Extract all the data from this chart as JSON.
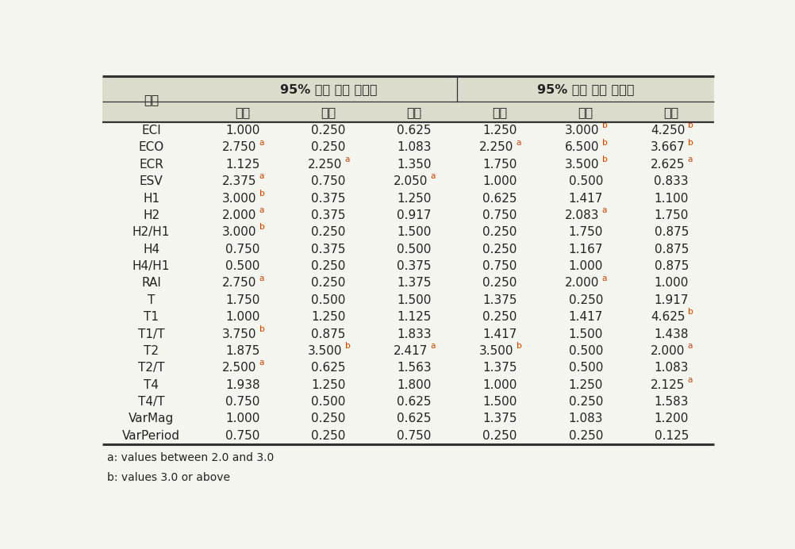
{
  "header_row1_col0": "지표",
  "header_row1_span1": "95% 구간 이상 이상치",
  "header_row1_span2": "95% 구간 이하 이상치",
  "header_row2": [
    "남성",
    "여성",
    "전체",
    "남성",
    "여성",
    "전체"
  ],
  "rows": [
    [
      "ECI",
      "1.000",
      "0.250",
      "0.625",
      "1.250",
      "3.000 b",
      "4.250 b"
    ],
    [
      "ECO",
      "2.750 a",
      "0.250",
      "1.083",
      "2.250 a",
      "6.500 b",
      "3.667 b"
    ],
    [
      "ECR",
      "1.125",
      "2.250 a",
      "1.350",
      "1.750",
      "3.500 b",
      "2.625 a"
    ],
    [
      "ESV",
      "2.375 a",
      "0.750",
      "2.050 a",
      "1.000",
      "0.500",
      "0.833"
    ],
    [
      "H1",
      "3.000 b",
      "0.375",
      "1.250",
      "0.625",
      "1.417",
      "1.100"
    ],
    [
      "H2",
      "2.000 a",
      "0.375",
      "0.917",
      "0.750",
      "2.083 a",
      "1.750"
    ],
    [
      "H2/H1",
      "3.000 b",
      "0.250",
      "1.500",
      "0.250",
      "1.750",
      "0.875"
    ],
    [
      "H4",
      "0.750",
      "0.375",
      "0.500",
      "0.250",
      "1.167",
      "0.875"
    ],
    [
      "H4/H1",
      "0.500",
      "0.250",
      "0.375",
      "0.750",
      "1.000",
      "0.875"
    ],
    [
      "RAI",
      "2.750 a",
      "0.250",
      "1.375",
      "0.250",
      "2.000 a",
      "1.000"
    ],
    [
      "T",
      "1.750",
      "0.500",
      "1.500",
      "1.375",
      "0.250",
      "1.917"
    ],
    [
      "T1",
      "1.000",
      "1.250",
      "1.125",
      "0.250",
      "1.417",
      "4.625 b"
    ],
    [
      "T1/T",
      "3.750 b",
      "0.875",
      "1.833",
      "1.417",
      "1.500",
      "1.438"
    ],
    [
      "T2",
      "1.875",
      "3.500 b",
      "2.417 a",
      "3.500 b",
      "0.500",
      "2.000 a"
    ],
    [
      "T2/T",
      "2.500 a",
      "0.625",
      "1.563",
      "1.375",
      "0.500",
      "1.083"
    ],
    [
      "T4",
      "1.938",
      "1.250",
      "1.800",
      "1.000",
      "1.250",
      "2.125 a"
    ],
    [
      "T4/T",
      "0.750",
      "0.500",
      "0.625",
      "1.500",
      "0.250",
      "1.583"
    ],
    [
      "VarMag",
      "1.000",
      "0.250",
      "0.625",
      "1.375",
      "1.083",
      "1.200"
    ],
    [
      "VarPeriod",
      "0.750",
      "0.250",
      "0.750",
      "0.250",
      "0.250",
      "0.125"
    ]
  ],
  "footnotes": [
    "a: values between 2.0 and 3.0",
    "b: values 3.0 or above"
  ],
  "bg_color": "#f5f5f0",
  "header_bg": "#dcdccc",
  "line_color": "#333333",
  "text_color": "#222222",
  "superscript_color": "#cc4400"
}
